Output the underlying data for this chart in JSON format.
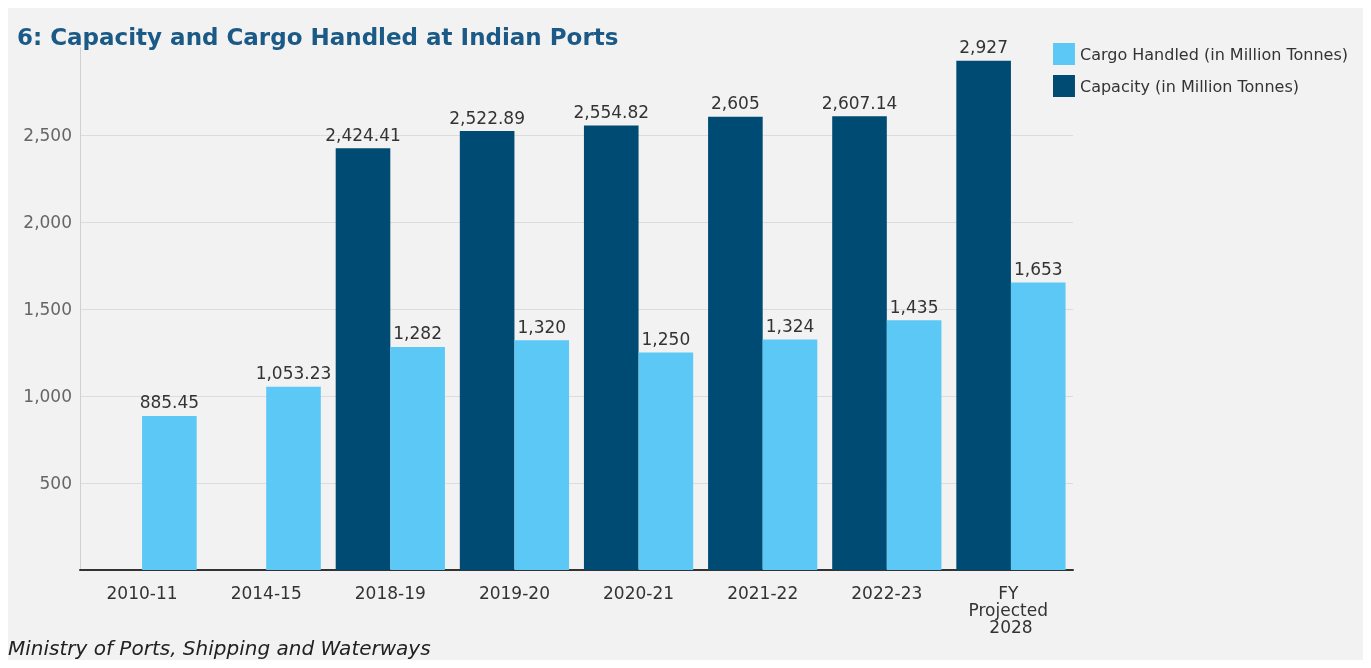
{
  "chart_data": {
    "type": "bar",
    "title": "6: Capacity and Cargo Handled at Indian Ports",
    "categories": [
      "2010-11",
      "2014-15",
      "2018-19",
      "2019-20",
      "2020-21",
      "2021-22",
      "2022-23",
      "FY Projected 2028"
    ],
    "series": [
      {
        "name": "Capacity (in Million Tonnes)",
        "color": "#004b73",
        "values": [
          null,
          null,
          2424.41,
          2522.89,
          2554.82,
          2605,
          2607.14,
          2927
        ],
        "value_labels": [
          null,
          null,
          "2,424.41",
          "2,522.89",
          "2,554.82",
          "2,605",
          "2,607.14",
          "2,927"
        ]
      },
      {
        "name": "Cargo Handled (in Million Tonnes)",
        "color": "#5bc8f5",
        "values": [
          885.45,
          1053.23,
          1282,
          1320,
          1250,
          1324,
          1435,
          1653
        ],
        "value_labels": [
          "885.45",
          "1,053.23",
          "1,282",
          "1,320",
          "1,250",
          "1,324",
          "1,435",
          "1,653"
        ]
      }
    ],
    "ylim": [
      0,
      3000
    ],
    "yticks": [
      {
        "value": 500,
        "label": "500"
      },
      {
        "value": 1000,
        "label": "1,000"
      },
      {
        "value": 1500,
        "label": "1,500"
      },
      {
        "value": 2000,
        "label": "2,000"
      },
      {
        "value": 2500,
        "label": "2,500"
      }
    ],
    "grid": "y",
    "legend": "top right",
    "annotations": [
      "Ministry of Ports, Shipping and Waterways"
    ]
  }
}
